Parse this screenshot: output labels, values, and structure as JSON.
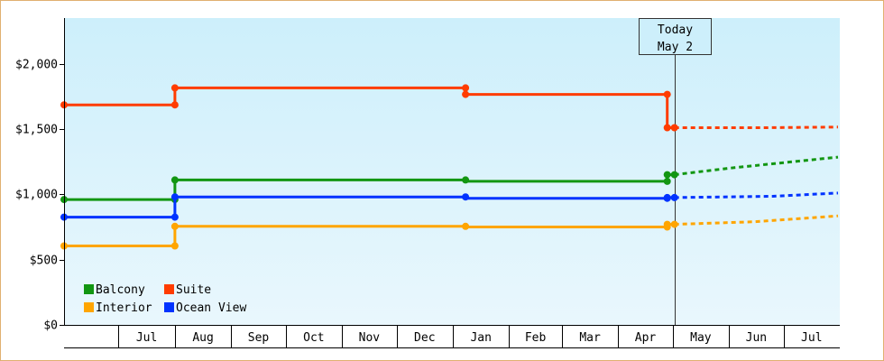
{
  "chart_data": {
    "type": "line",
    "title": "",
    "xlabel": "",
    "ylabel": "",
    "ylim": [
      0,
      2350
    ],
    "y_ticks": [
      {
        "value": 0,
        "label": "$0"
      },
      {
        "value": 500,
        "label": "$500"
      },
      {
        "value": 1000,
        "label": "$1,000"
      },
      {
        "value": 1500,
        "label": "$1,500"
      },
      {
        "value": 2000,
        "label": "$2,000"
      }
    ],
    "x_range": [
      "2023-06-01",
      "2024-07-31"
    ],
    "month_labels": [
      {
        "label": "Jul",
        "start": "2023-07-01",
        "end": "2023-08-01"
      },
      {
        "label": "Aug",
        "start": "2023-08-01",
        "end": "2023-09-01"
      },
      {
        "label": "Sep",
        "start": "2023-09-01",
        "end": "2023-10-01"
      },
      {
        "label": "Oct",
        "start": "2023-10-01",
        "end": "2023-11-01"
      },
      {
        "label": "Nov",
        "start": "2023-11-01",
        "end": "2023-12-01"
      },
      {
        "label": "Dec",
        "start": "2023-12-01",
        "end": "2024-01-01"
      },
      {
        "label": "Jan",
        "start": "2024-01-01",
        "end": "2024-02-01"
      },
      {
        "label": "Feb",
        "start": "2024-02-01",
        "end": "2024-03-01"
      },
      {
        "label": "Mar",
        "start": "2024-03-01",
        "end": "2024-04-01"
      },
      {
        "label": "Apr",
        "start": "2024-04-01",
        "end": "2024-05-01"
      },
      {
        "label": "May",
        "start": "2024-05-01",
        "end": "2024-06-01"
      },
      {
        "label": "Jun",
        "start": "2024-06-01",
        "end": "2024-07-01"
      },
      {
        "label": "Jul",
        "start": "2024-07-01",
        "end": "2024-08-01"
      }
    ],
    "today": {
      "date": "2024-05-02",
      "line1": "Today",
      "line2": "May 2"
    },
    "grid": false,
    "legend_position": "bottom-left",
    "series": [
      {
        "name": "Balcony",
        "color": "#129612",
        "points": [
          {
            "x": "2023-06-01",
            "y": 960,
            "marker": true
          },
          {
            "x": "2023-08-01",
            "y": 960,
            "marker": true
          },
          {
            "x": "2023-08-01",
            "y": 1110,
            "marker": true
          },
          {
            "x": "2024-01-08",
            "y": 1110,
            "marker": true
          },
          {
            "x": "2024-01-08",
            "y": 1100,
            "marker": false
          },
          {
            "x": "2024-04-28",
            "y": 1100,
            "marker": true
          },
          {
            "x": "2024-04-28",
            "y": 1150,
            "marker": true
          },
          {
            "x": "2024-05-02",
            "y": 1150,
            "marker": true
          }
        ],
        "forecast": [
          {
            "x": "2024-05-02",
            "y": 1150
          },
          {
            "x": "2024-06-01",
            "y": 1200
          },
          {
            "x": "2024-07-31",
            "y": 1285
          }
        ]
      },
      {
        "name": "Suite",
        "color": "#ff3c00",
        "points": [
          {
            "x": "2023-06-01",
            "y": 1685,
            "marker": true
          },
          {
            "x": "2023-08-01",
            "y": 1685,
            "marker": true
          },
          {
            "x": "2023-08-01",
            "y": 1815,
            "marker": true
          },
          {
            "x": "2024-01-08",
            "y": 1815,
            "marker": true
          },
          {
            "x": "2024-01-08",
            "y": 1765,
            "marker": true
          },
          {
            "x": "2024-04-28",
            "y": 1765,
            "marker": true
          },
          {
            "x": "2024-04-28",
            "y": 1510,
            "marker": true
          },
          {
            "x": "2024-05-02",
            "y": 1510,
            "marker": true
          }
        ],
        "forecast": [
          {
            "x": "2024-05-02",
            "y": 1510
          },
          {
            "x": "2024-06-20",
            "y": 1510
          },
          {
            "x": "2024-07-31",
            "y": 1515
          }
        ]
      },
      {
        "name": "Interior",
        "color": "#ffa500",
        "points": [
          {
            "x": "2023-06-01",
            "y": 605,
            "marker": true
          },
          {
            "x": "2023-08-01",
            "y": 605,
            "marker": true
          },
          {
            "x": "2023-08-01",
            "y": 755,
            "marker": true
          },
          {
            "x": "2024-01-08",
            "y": 755,
            "marker": true
          },
          {
            "x": "2024-01-08",
            "y": 750,
            "marker": false
          },
          {
            "x": "2024-04-28",
            "y": 750,
            "marker": true
          },
          {
            "x": "2024-04-28",
            "y": 770,
            "marker": true
          },
          {
            "x": "2024-05-02",
            "y": 770,
            "marker": true
          }
        ],
        "forecast": [
          {
            "x": "2024-05-02",
            "y": 770
          },
          {
            "x": "2024-06-15",
            "y": 790
          },
          {
            "x": "2024-07-31",
            "y": 835
          }
        ]
      },
      {
        "name": "Ocean View",
        "color": "#0033ff",
        "points": [
          {
            "x": "2023-06-01",
            "y": 825,
            "marker": true
          },
          {
            "x": "2023-08-01",
            "y": 825,
            "marker": true
          },
          {
            "x": "2023-08-01",
            "y": 980,
            "marker": true
          },
          {
            "x": "2024-01-08",
            "y": 980,
            "marker": true
          },
          {
            "x": "2024-01-08",
            "y": 970,
            "marker": false
          },
          {
            "x": "2024-04-28",
            "y": 970,
            "marker": true
          },
          {
            "x": "2024-04-28",
            "y": 975,
            "marker": true
          },
          {
            "x": "2024-05-02",
            "y": 975,
            "marker": true
          }
        ],
        "forecast": [
          {
            "x": "2024-05-02",
            "y": 975
          },
          {
            "x": "2024-06-25",
            "y": 985
          },
          {
            "x": "2024-07-31",
            "y": 1010
          }
        ]
      }
    ]
  }
}
